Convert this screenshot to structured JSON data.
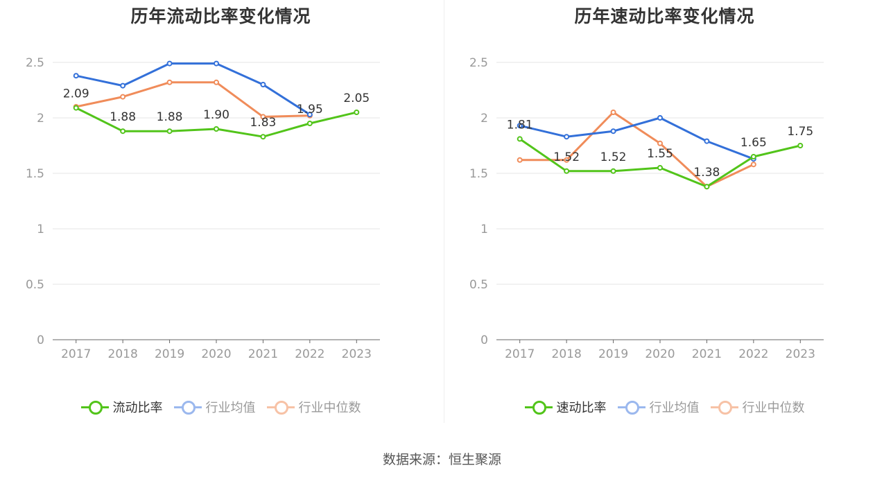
{
  "source": "数据来源：恒生聚源",
  "chart_data": [
    {
      "type": "line",
      "title": "历年流动比率变化情况",
      "categories": [
        "2017",
        "2018",
        "2019",
        "2020",
        "2021",
        "2022",
        "2023"
      ],
      "ylim": [
        0,
        2.5
      ],
      "yticks": [
        0,
        0.5,
        1,
        1.5,
        2,
        2.5
      ],
      "ytick_labels": [
        "0",
        "0.5",
        "1",
        "1.5",
        "2",
        "2.5"
      ],
      "grid": true,
      "legend_position": "bottom",
      "series": [
        {
          "name": "流动比率",
          "color": "#52c41a",
          "values": [
            2.09,
            1.88,
            1.88,
            1.9,
            1.83,
            1.95,
            2.05
          ],
          "labels": [
            "2.09",
            "1.88",
            "1.88",
            "1.90",
            "1.83",
            "1.95",
            "2.05"
          ],
          "legend_style": "solid"
        },
        {
          "name": "行业均值",
          "color": "#3370d9",
          "values": [
            2.38,
            2.29,
            2.49,
            2.49,
            2.3,
            2.03,
            null
          ],
          "legend_style": "faded"
        },
        {
          "name": "行业中位数",
          "color": "#f08c5a",
          "values": [
            2.1,
            2.19,
            2.32,
            2.32,
            2.01,
            2.02,
            null
          ],
          "legend_style": "faded"
        }
      ]
    },
    {
      "type": "line",
      "title": "历年速动比率变化情况",
      "categories": [
        "2017",
        "2018",
        "2019",
        "2020",
        "2021",
        "2022",
        "2023"
      ],
      "ylim": [
        0,
        2.5
      ],
      "yticks": [
        0,
        0.5,
        1,
        1.5,
        2,
        2.5
      ],
      "ytick_labels": [
        "0",
        "0.5",
        "1",
        "1.5",
        "2",
        "2.5"
      ],
      "grid": true,
      "legend_position": "bottom",
      "series": [
        {
          "name": "速动比率",
          "color": "#52c41a",
          "values": [
            1.81,
            1.52,
            1.52,
            1.55,
            1.38,
            1.65,
            1.75
          ],
          "labels": [
            "1.81",
            "1.52",
            "1.52",
            "1.55",
            "1.38",
            "1.65",
            "1.75"
          ],
          "legend_style": "solid"
        },
        {
          "name": "行业均值",
          "color": "#3370d9",
          "values": [
            1.93,
            1.83,
            1.88,
            2.0,
            1.79,
            1.63,
            null
          ],
          "legend_style": "faded"
        },
        {
          "name": "行业中位数",
          "color": "#f08c5a",
          "values": [
            1.62,
            1.62,
            2.05,
            1.77,
            1.38,
            1.58,
            null
          ],
          "legend_style": "faded"
        }
      ]
    }
  ]
}
